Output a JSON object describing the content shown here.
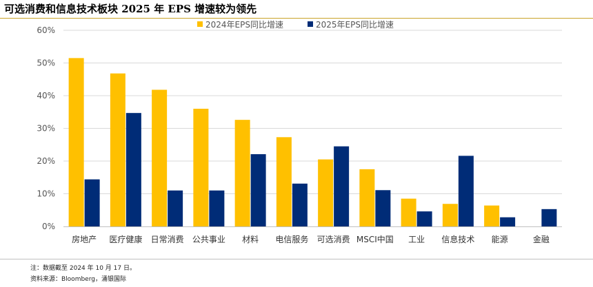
{
  "title": "可选消费和信息技术板块 2025 年 EPS 增速较为领先",
  "note": "注：数据截至 2024 年 10 月 17 日。",
  "source": "资料来源：Bloomberg，涌银国际",
  "chart_data": {
    "type": "bar",
    "categories": [
      "房地产",
      "医疗健康",
      "日常消费",
      "公共事业",
      "材料",
      "电信服务",
      "可选消费",
      "MSCI中国",
      "工业",
      "信息技术",
      "能源",
      "金融"
    ],
    "series": [
      {
        "name": "2024年EPS同比增速",
        "color": "#FFC000",
        "values": [
          51.5,
          46.8,
          41.8,
          36.0,
          32.6,
          27.3,
          20.5,
          17.5,
          8.5,
          6.9,
          6.4,
          null
        ]
      },
      {
        "name": "2025年EPS同比增速",
        "color": "#002C77",
        "values": [
          14.4,
          34.7,
          11.0,
          11.0,
          22.1,
          13.1,
          24.5,
          11.1,
          4.6,
          21.6,
          2.8,
          5.3
        ]
      }
    ],
    "yticks": [
      "0%",
      "10%",
      "20%",
      "30%",
      "40%",
      "50%",
      "60%"
    ],
    "ylim": [
      0,
      60
    ],
    "ylabel": "",
    "xlabel": "",
    "grid": true,
    "legend": "top-center"
  }
}
